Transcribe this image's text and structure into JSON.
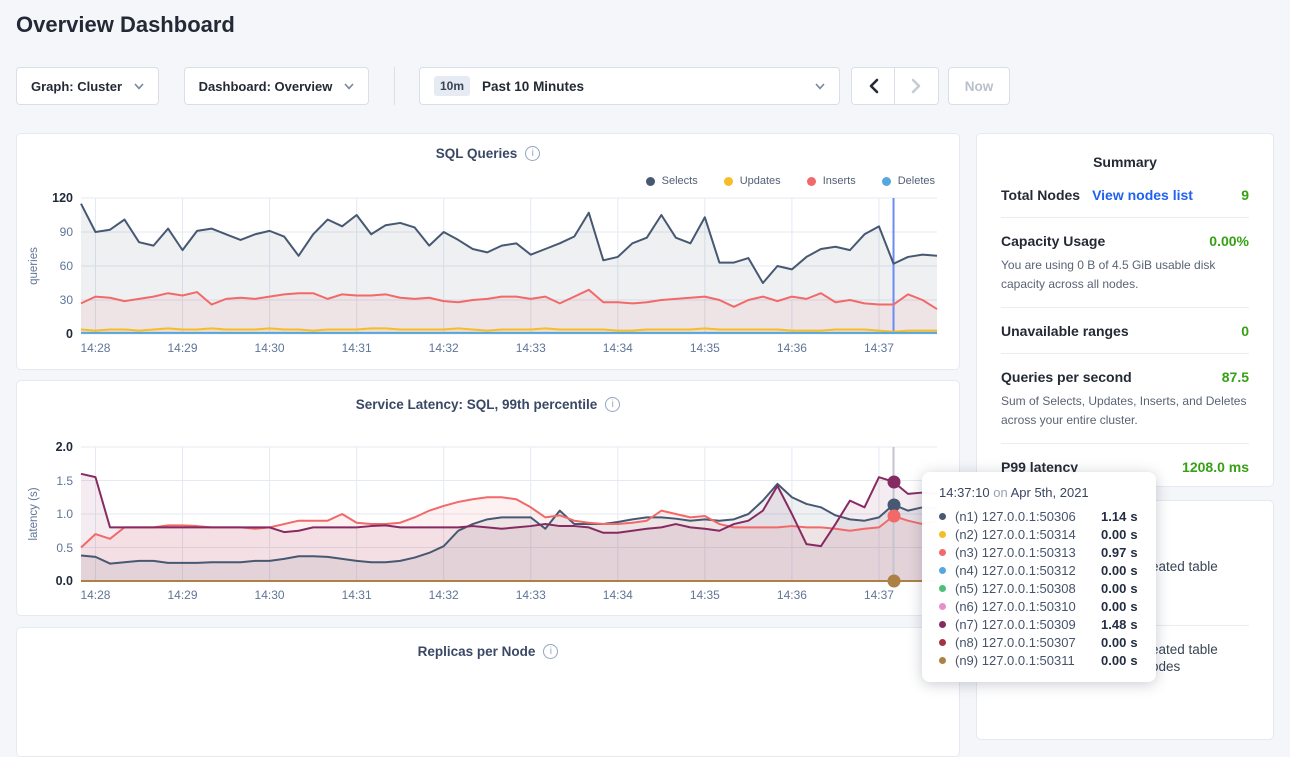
{
  "page": {
    "title": "Overview Dashboard",
    "background": "#f4f6fa"
  },
  "toolbar": {
    "graph_label": "Graph: Cluster",
    "dashboard_label": "Dashboard: Overview",
    "time_badge": "10m",
    "time_label": "Past 10 Minutes",
    "now_label": "Now"
  },
  "summary": {
    "title": "Summary",
    "total_nodes_label": "Total Nodes",
    "total_nodes_link": "View nodes list",
    "total_nodes_value": "9",
    "capacity_label": "Capacity Usage",
    "capacity_value": "0.00%",
    "capacity_desc": "You are using 0 B of 4.5 GiB usable disk capacity across all nodes.",
    "unavailable_label": "Unavailable ranges",
    "unavailable_value": "0",
    "qps_label": "Queries per second",
    "qps_value": "87.5",
    "qps_desc": "Sum of Selects, Updates, Inserts, and Deletes across your entire cluster.",
    "p99_label": "P99 latency",
    "p99_value": "1208.0 ms",
    "accent_green": "#36a115",
    "link_blue": "#2161f0"
  },
  "tooltip": {
    "time": "14:37:10",
    "connector": "on",
    "date": "Apr 5th, 2021",
    "unit": "s",
    "rows": [
      {
        "color": "#475872",
        "label": "(n1) 127.0.0.1:50306",
        "value": "1.14"
      },
      {
        "color": "#f5bd27",
        "label": "(n2) 127.0.0.1:50314",
        "value": "0.00"
      },
      {
        "color": "#f16969",
        "label": "(n3) 127.0.0.1:50313",
        "value": "0.97"
      },
      {
        "color": "#55a7de",
        "label": "(n4) 127.0.0.1:50312",
        "value": "0.00"
      },
      {
        "color": "#4dbf76",
        "label": "(n5) 127.0.0.1:50308",
        "value": "0.00"
      },
      {
        "color": "#e591c8",
        "label": "(n6) 127.0.0.1:50310",
        "value": "0.00"
      },
      {
        "color": "#862b62",
        "label": "(n7) 127.0.0.1:50309",
        "value": "1.48"
      },
      {
        "color": "#a23545",
        "label": "(n8) 127.0.0.1:50307",
        "value": "0.00"
      },
      {
        "color": "#ab8146",
        "label": "(n9) 127.0.0.1:50311",
        "value": "0.00"
      }
    ]
  },
  "events": {
    "fragments": [
      "eated table",
      "eated table",
      "odes"
    ]
  },
  "chart_data": [
    {
      "type": "line",
      "title": "SQL Queries",
      "ylabel": "queries",
      "ylim": [
        0,
        120
      ],
      "yticks": [
        0,
        30,
        60,
        90,
        120
      ],
      "ytick_labels": [
        "0",
        "30",
        "60",
        "90",
        "120"
      ],
      "xticks": [
        "14:28",
        "14:29",
        "14:30",
        "14:31",
        "14:32",
        "14:33",
        "14:34",
        "14:35",
        "14:36",
        "14:37"
      ],
      "xtick_indices": [
        1,
        7,
        13,
        19,
        25,
        31,
        37,
        43,
        49,
        55
      ],
      "n_points": 60,
      "grid": true,
      "legend_position": "top-right",
      "hover": {
        "index": 56,
        "color": "#6b8df2",
        "dots": []
      },
      "series": [
        {
          "name": "Selects",
          "color": "#475872",
          "values": [
            115,
            90,
            92,
            101,
            81,
            78,
            93,
            74,
            91,
            93,
            88,
            83,
            88,
            91,
            86,
            69,
            88,
            101,
            95,
            105,
            88,
            96,
            98,
            94,
            78,
            90,
            83,
            75,
            72,
            78,
            80,
            70,
            75,
            80,
            86,
            107,
            65,
            68,
            80,
            85,
            105,
            85,
            80,
            103,
            63,
            63,
            67,
            45,
            60,
            57,
            68,
            75,
            77,
            74,
            88,
            95,
            62,
            68,
            70,
            69
          ]
        },
        {
          "name": "Updates",
          "color": "#f5bd27",
          "values": [
            4,
            3,
            4,
            4,
            3,
            4,
            5,
            4,
            4,
            5,
            4,
            4,
            4,
            5,
            4,
            4,
            3,
            4,
            4,
            4,
            5,
            5,
            4,
            4,
            4,
            4,
            5,
            4,
            3,
            4,
            4,
            4,
            5,
            4,
            4,
            4,
            4,
            3,
            3,
            4,
            4,
            4,
            4,
            5,
            4,
            4,
            4,
            4,
            4,
            3,
            3,
            3,
            4,
            4,
            4,
            3,
            2,
            3,
            3,
            3
          ]
        },
        {
          "name": "Inserts",
          "color": "#f16969",
          "values": [
            27,
            33,
            32,
            29,
            31,
            33,
            36,
            34,
            37,
            26,
            31,
            32,
            31,
            33,
            35,
            36,
            36,
            31,
            35,
            34,
            34,
            35,
            32,
            31,
            32,
            29,
            28,
            30,
            31,
            33,
            33,
            31,
            33,
            27,
            33,
            39,
            28,
            28,
            27,
            28,
            30,
            31,
            32,
            33,
            30,
            24,
            30,
            33,
            29,
            33,
            31,
            36,
            28,
            30,
            27,
            26,
            26,
            35,
            30,
            22
          ]
        },
        {
          "name": "Deletes",
          "color": "#55a7de",
          "values": [
            1,
            1,
            1,
            1,
            1,
            1,
            1,
            1,
            1,
            1,
            1,
            1,
            1,
            1,
            1,
            1,
            1,
            1,
            1,
            1,
            1,
            1,
            1,
            1,
            1,
            1,
            1,
            1,
            1,
            1,
            1,
            1,
            1,
            1,
            1,
            1,
            1,
            1,
            1,
            1,
            1,
            1,
            1,
            1,
            1,
            1,
            1,
            1,
            1,
            1,
            1,
            1,
            1,
            1,
            1,
            1,
            1,
            1,
            1,
            1
          ]
        }
      ]
    },
    {
      "type": "line",
      "title": "Service Latency: SQL, 99th percentile",
      "ylabel": "latency (s)",
      "ylim": [
        0,
        2
      ],
      "yticks": [
        0,
        0.5,
        1,
        1.5,
        2
      ],
      "ytick_labels": [
        "0.0",
        "0.5",
        "1.0",
        "1.5",
        "2.0"
      ],
      "xticks": [
        "14:28",
        "14:29",
        "14:30",
        "14:31",
        "14:32",
        "14:33",
        "14:34",
        "14:35",
        "14:36",
        "14:37"
      ],
      "xtick_indices": [
        1,
        7,
        13,
        19,
        25,
        31,
        37,
        43,
        49,
        55
      ],
      "n_points": 60,
      "grid": true,
      "legend_position": "none",
      "hover": {
        "index": 56,
        "color": "#c2c6d0",
        "dots": [
          {
            "color": "#862b62",
            "value": 1.48
          },
          {
            "color": "#475872",
            "value": 1.14
          },
          {
            "color": "#f16969",
            "value": 0.97
          },
          {
            "color": "#ab8146",
            "value": 0.0
          }
        ]
      },
      "series": [
        {
          "name": "(n1) 127.0.0.1:50306",
          "color": "#475872",
          "values": [
            0.38,
            0.36,
            0.26,
            0.28,
            0.3,
            0.3,
            0.27,
            0.27,
            0.27,
            0.28,
            0.28,
            0.28,
            0.3,
            0.3,
            0.33,
            0.37,
            0.37,
            0.36,
            0.33,
            0.3,
            0.28,
            0.28,
            0.3,
            0.35,
            0.42,
            0.52,
            0.75,
            0.85,
            0.92,
            0.95,
            0.95,
            0.95,
            0.78,
            1.05,
            0.85,
            0.85,
            0.85,
            0.88,
            0.92,
            0.95,
            0.95,
            0.93,
            0.9,
            0.92,
            0.9,
            0.92,
            1.0,
            1.2,
            1.45,
            1.25,
            1.15,
            1.1,
            0.98,
            0.92,
            0.9,
            0.95,
            1.14,
            1.05,
            1.1,
            1.08
          ]
        },
        {
          "name": "(n3) 127.0.0.1:50313",
          "color": "#f16969",
          "values": [
            0.5,
            0.7,
            0.63,
            0.8,
            0.8,
            0.8,
            0.83,
            0.83,
            0.82,
            0.8,
            0.8,
            0.8,
            0.78,
            0.8,
            0.85,
            0.9,
            0.9,
            0.9,
            1.0,
            0.87,
            0.85,
            0.85,
            0.87,
            0.95,
            1.05,
            1.12,
            1.18,
            1.22,
            1.25,
            1.25,
            1.22,
            1.1,
            0.95,
            0.98,
            0.9,
            0.87,
            0.85,
            0.85,
            0.87,
            0.9,
            1.05,
            1.0,
            0.95,
            0.97,
            0.85,
            0.8,
            0.8,
            0.8,
            0.8,
            0.82,
            0.8,
            0.8,
            0.78,
            0.75,
            0.78,
            0.8,
            0.97,
            0.9,
            0.85,
            0.9
          ]
        },
        {
          "name": "(n7) 127.0.0.1:50309",
          "color": "#862b62",
          "values": [
            1.6,
            1.55,
            0.8,
            0.8,
            0.8,
            0.8,
            0.8,
            0.8,
            0.8,
            0.8,
            0.8,
            0.8,
            0.8,
            0.8,
            0.73,
            0.75,
            0.8,
            0.8,
            0.8,
            0.8,
            0.82,
            0.83,
            0.8,
            0.8,
            0.8,
            0.8,
            0.8,
            0.82,
            0.8,
            0.78,
            0.8,
            0.82,
            0.85,
            0.82,
            0.82,
            0.8,
            0.72,
            0.72,
            0.75,
            0.78,
            0.8,
            0.85,
            0.8,
            0.78,
            0.75,
            0.85,
            0.9,
            1.05,
            1.42,
            1.0,
            0.55,
            0.52,
            0.85,
            1.2,
            1.1,
            1.55,
            1.48,
            1.3,
            1.32,
            1.3
          ]
        },
        {
          "name": "(n9) 127.0.0.1:50311",
          "color": "#ab8146",
          "values": [
            0,
            0,
            0,
            0,
            0,
            0,
            0,
            0,
            0,
            0,
            0,
            0,
            0,
            0,
            0,
            0,
            0,
            0,
            0,
            0,
            0,
            0,
            0,
            0,
            0,
            0,
            0,
            0,
            0,
            0,
            0,
            0,
            0,
            0,
            0,
            0,
            0,
            0,
            0,
            0,
            0,
            0,
            0,
            0,
            0,
            0,
            0,
            0,
            0,
            0,
            0,
            0,
            0,
            0,
            0,
            0,
            0,
            0,
            0,
            0
          ]
        }
      ]
    },
    {
      "type": "line",
      "title": "Replicas per Node",
      "series": []
    }
  ]
}
